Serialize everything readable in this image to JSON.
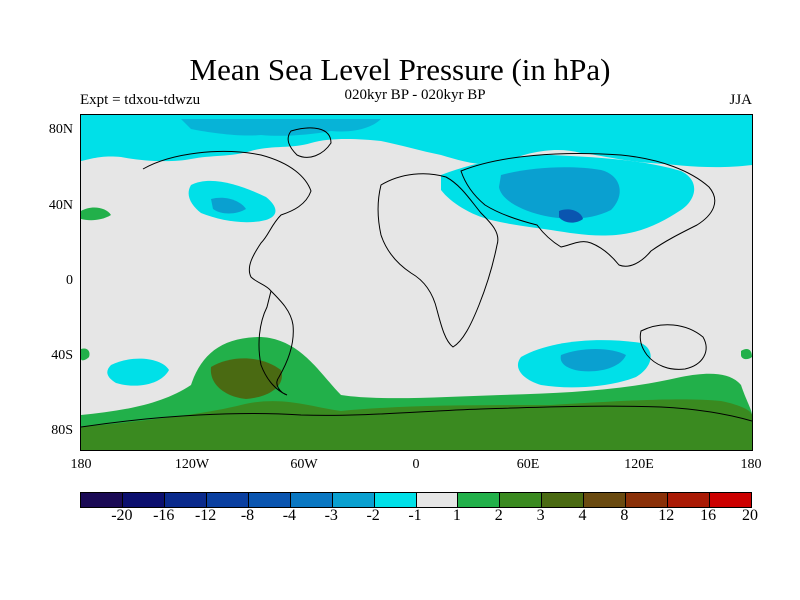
{
  "title": "Mean Sea Level Pressure (in hPa)",
  "subtitle": "020kyr BP - 020kyr BP",
  "experiment": "Expt = tdxou-tdwzu",
  "season": "JJA",
  "axes": {
    "y_labels": [
      "80N",
      "40N",
      "0",
      "40S",
      "80S"
    ],
    "x_labels": [
      "180",
      "120W",
      "60W",
      "0",
      "60E",
      "120E",
      "180"
    ]
  },
  "colorbar": {
    "labels": [
      "-20",
      "-16",
      "-12",
      "-8",
      "-4",
      "-3",
      "-2",
      "-1",
      "1",
      "2",
      "3",
      "4",
      "8",
      "12",
      "16",
      "20"
    ],
    "colors": [
      "#1a0a55",
      "#0b0f6e",
      "#0a2a8c",
      "#0a3fa0",
      "#0a55b0",
      "#0a77c2",
      "#0aa0d0",
      "#00e0e8",
      "#e6e6e6",
      "#22b04a",
      "#3a8a20",
      "#4a6a12",
      "#6a4a10",
      "#8a3008",
      "#aa1a05",
      "#cc0000"
    ]
  },
  "chart_data": {
    "type": "heatmap",
    "title": "Mean Sea Level Pressure (in hPa)",
    "subtitle": "020kyr BP - 020kyr BP",
    "xlim": [
      -180,
      180
    ],
    "ylim": [
      -90,
      90
    ],
    "x_ticks": [
      "180",
      "120W",
      "60W",
      "0",
      "60E",
      "120E",
      "180"
    ],
    "y_ticks": [
      "80N",
      "40N",
      "0",
      "40S",
      "80S"
    ],
    "levels": [
      -20,
      -16,
      -12,
      -8,
      -4,
      -3,
      -2,
      -1,
      1,
      2,
      3,
      4,
      8,
      12,
      16,
      20
    ]
  }
}
